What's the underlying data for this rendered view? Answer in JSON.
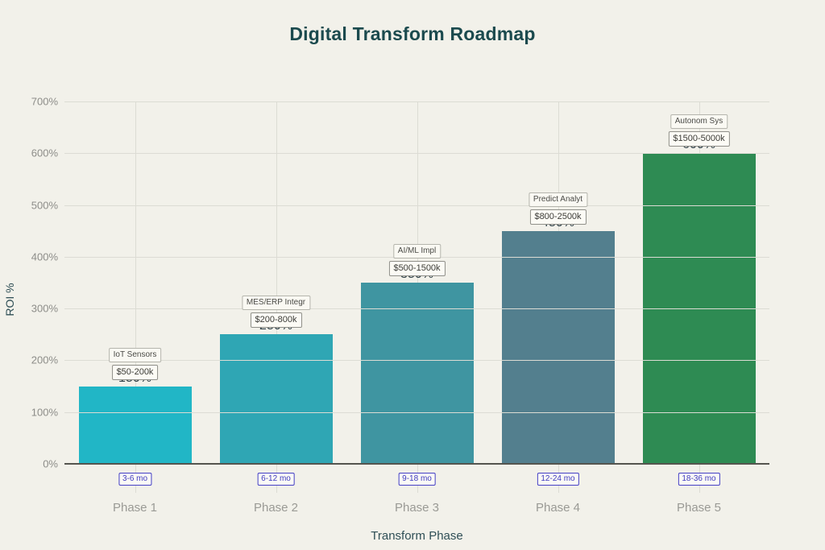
{
  "title": "Digital Transform Roadmap",
  "chart_data": {
    "type": "bar",
    "title": "Digital Transform Roadmap",
    "xlabel": "Transform Phase",
    "ylabel": "ROI %",
    "ylim": [
      0,
      700
    ],
    "y_ticks": [
      "0%",
      "100%",
      "200%",
      "300%",
      "400%",
      "500%",
      "600%",
      "700%"
    ],
    "grid": true,
    "legend_position": "none",
    "categories": [
      "Phase 1",
      "Phase 2",
      "Phase 3",
      "Phase 4",
      "Phase 5"
    ],
    "values": [
      150,
      250,
      350,
      450,
      600
    ],
    "bars": [
      {
        "phase": "Phase 1",
        "roi_pct": 150,
        "roi_label": "150%",
        "tech": "IoT Sensors",
        "cost": "$50-200k",
        "duration": "3-6 mo",
        "color": "#21b6c6"
      },
      {
        "phase": "Phase 2",
        "roi_pct": 250,
        "roi_label": "250%",
        "tech": "MES/ERP Integr",
        "cost": "$200-800k",
        "duration": "6-12 mo",
        "color": "#2fa6b4"
      },
      {
        "phase": "Phase 3",
        "roi_pct": 350,
        "roi_label": "350%",
        "tech": "AI/ML Impl",
        "cost": "$500-1500k",
        "duration": "9-18 mo",
        "color": "#3f95a1"
      },
      {
        "phase": "Phase 4",
        "roi_pct": 450,
        "roi_label": "450%",
        "tech": "Predict Analyt",
        "cost": "$800-2500k",
        "duration": "12-24 mo",
        "color": "#537f8e"
      },
      {
        "phase": "Phase 5",
        "roi_pct": 600,
        "roi_label": "600%",
        "tech": "Autonom Sys",
        "cost": "$1500-5000k",
        "duration": "18-36 mo",
        "color": "#2e8b53"
      }
    ]
  },
  "colors": {
    "background": "#f2f1ea",
    "title": "#1b4a4e",
    "grid": "#dcdcd4",
    "axis_line": "#55554f",
    "tick_label": "#8d8d89",
    "phase_label": "#9a9a95",
    "axis_title": "#2f4f56",
    "value_label": "#2e3f46",
    "duration_badge": "#3f3ac0"
  }
}
